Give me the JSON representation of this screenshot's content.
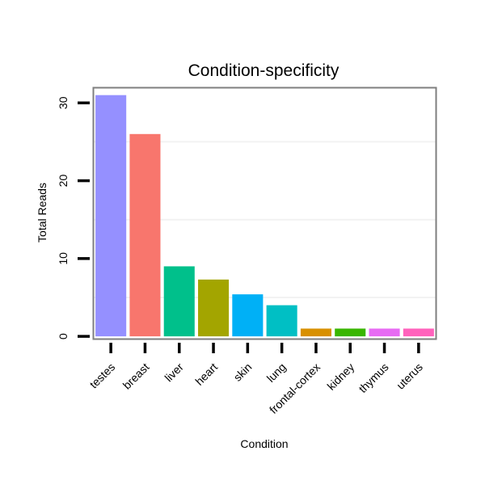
{
  "chart_data": {
    "type": "bar",
    "title": "Condition-specificity",
    "xlabel": "Condition",
    "ylabel": "Total Reads",
    "categories": [
      "testes",
      "breast",
      "liver",
      "heart",
      "skin",
      "lung",
      "frontal-cortex",
      "kidney",
      "thymus",
      "uterus"
    ],
    "values": [
      31,
      26,
      9,
      7.3,
      5.4,
      4,
      1,
      1,
      1,
      1
    ],
    "colors": [
      "#9590FF",
      "#F8766D",
      "#00C08B",
      "#A3A500",
      "#00B0F6",
      "#00BFC4",
      "#D89000",
      "#39B600",
      "#E76BF3",
      "#FF62BC"
    ],
    "ylim": [
      -0.3,
      31.9
    ],
    "yticks": [
      0,
      10,
      20,
      30
    ],
    "grid": true,
    "legend": "none"
  }
}
